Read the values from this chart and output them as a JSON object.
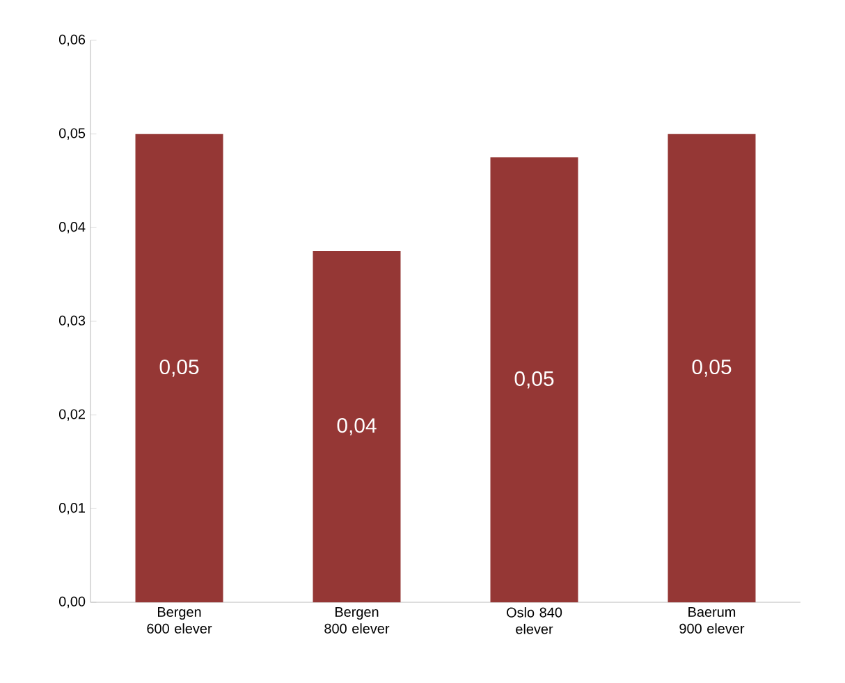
{
  "chart_data": {
    "type": "bar",
    "categories": [
      "Bergen 600 elever",
      "Bergen 800 elever",
      "Oslo 840 elever",
      "Baerum 900 elever"
    ],
    "values": [
      0.05,
      0.0375,
      0.0475,
      0.05
    ],
    "value_labels": [
      "0,05",
      "0,04",
      "0,05",
      "0,05"
    ],
    "color": "#953735",
    "ylim": [
      0,
      0.06
    ],
    "yticks": [
      {
        "value": 0,
        "label": "0,00"
      },
      {
        "value": 0.01,
        "label": "0,01"
      },
      {
        "value": 0.02,
        "label": "0,02"
      },
      {
        "value": 0.03,
        "label": "0,03"
      },
      {
        "value": 0.04,
        "label": "0,04"
      },
      {
        "value": 0.05,
        "label": "0,05"
      },
      {
        "value": 0.06,
        "label": "0,06"
      }
    ],
    "grid": false
  }
}
